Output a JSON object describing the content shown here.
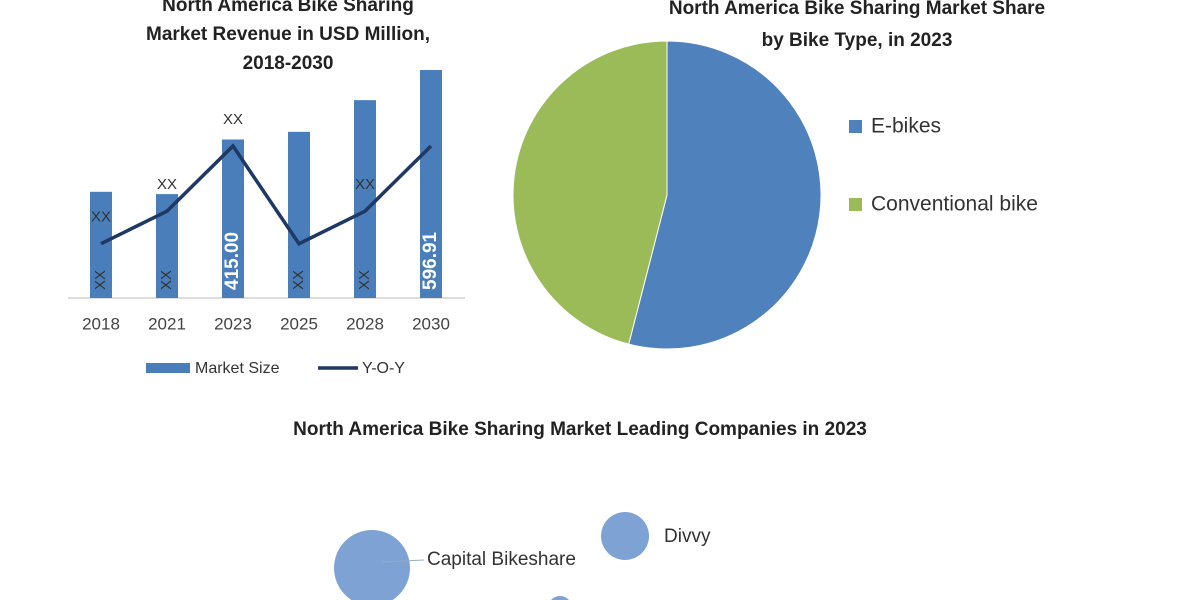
{
  "chart_data": [
    {
      "type": "combo",
      "title": [
        "North America Bike Sharing",
        "Market Revenue in USD Million,",
        "2018-2030"
      ],
      "categories": [
        "2018",
        "2021",
        "2023",
        "2025",
        "2028",
        "2030"
      ],
      "series": [
        {
          "name": "Market Size",
          "type": "bar",
          "color": "#4a7ebb",
          "values": [
            278,
            272,
            415,
            435,
            518,
            596.91
          ],
          "value_labels": [
            "XX",
            "XX",
            "415.00",
            "XX",
            "XX",
            "596.91"
          ]
        },
        {
          "name": "Y-O-Y",
          "type": "line",
          "color": "#1f3864",
          "values": [
            5,
            8,
            14,
            5,
            8,
            14
          ],
          "value_labels": [
            "XX",
            "XX",
            "XX",
            null,
            "XX",
            null
          ]
        }
      ]
    },
    {
      "type": "pie",
      "title": [
        "North America Bike Sharing Market Share",
        "by Bike Type, in 2023"
      ],
      "categories": [
        "E-bikes",
        "Conventional bike"
      ],
      "values": [
        54,
        46
      ],
      "colors": [
        "#4f81bd",
        "#9bbb59"
      ]
    }
  ],
  "bubble_panel": {
    "title": "North America Bike Sharing Market Leading Companies in 2023",
    "companies": [
      "Capital Bikeshare",
      "Divvy"
    ]
  }
}
